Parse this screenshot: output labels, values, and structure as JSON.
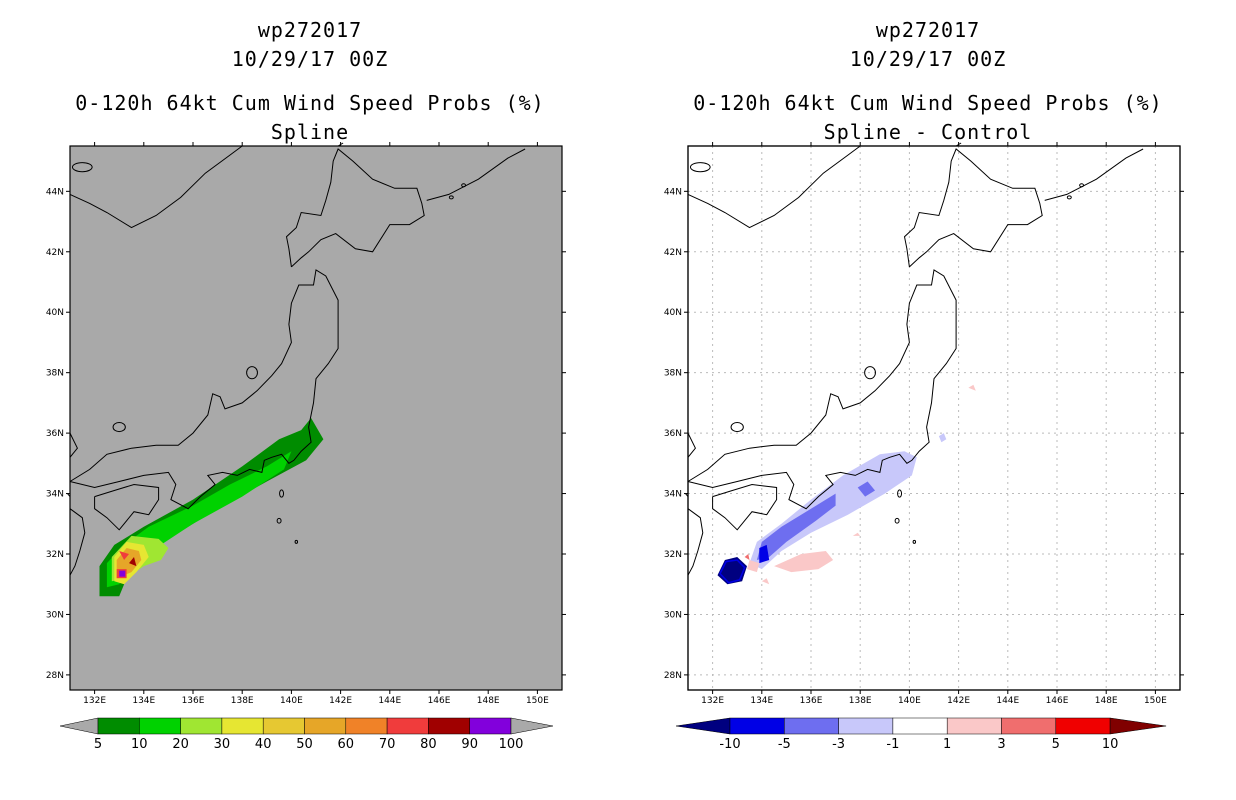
{
  "panels": [
    {
      "id": "left",
      "storm": "wp272017",
      "datetime": "10/29/17 00Z",
      "product": "0-120h 64kt Cum Wind Speed Probs (%)",
      "subtitle": "Spline",
      "background": "#a9a9a9",
      "colorbar": {
        "colors": [
          "#008c00",
          "#00d200",
          "#a0e632",
          "#e6e632",
          "#e6c832",
          "#e6a628",
          "#f08228",
          "#f03c3c",
          "#a00000",
          "#8200dc"
        ],
        "labels": [
          "5",
          "10",
          "20",
          "30",
          "40",
          "50",
          "60",
          "70",
          "80",
          "90",
          "100"
        ],
        "end_color": "#a9a9a9"
      }
    },
    {
      "id": "right",
      "storm": "wp272017",
      "datetime": "10/29/17 00Z",
      "product": "0-120h 64kt Cum Wind Speed Probs (%)",
      "subtitle": "Spline - Control",
      "background": "#ffffff",
      "colorbar": {
        "colors": [
          "#0000e6",
          "#6e6ef0",
          "#c8c8fa",
          "#ffffff",
          "#fac8c8",
          "#f06e6e",
          "#f00000"
        ],
        "labels": [
          "-10",
          "-5",
          "-3",
          "-1",
          "1",
          "3",
          "5",
          "10"
        ],
        "end_left": "#000080",
        "end_right": "#800000"
      }
    }
  ],
  "axes": {
    "lat_labels": [
      "44N",
      "42N",
      "40N",
      "38N",
      "36N",
      "34N",
      "32N",
      "30N",
      "28N"
    ],
    "lon_labels": [
      "132E",
      "134E",
      "136E",
      "138E",
      "140E",
      "142E",
      "144E",
      "146E",
      "148E",
      "150E"
    ]
  }
}
